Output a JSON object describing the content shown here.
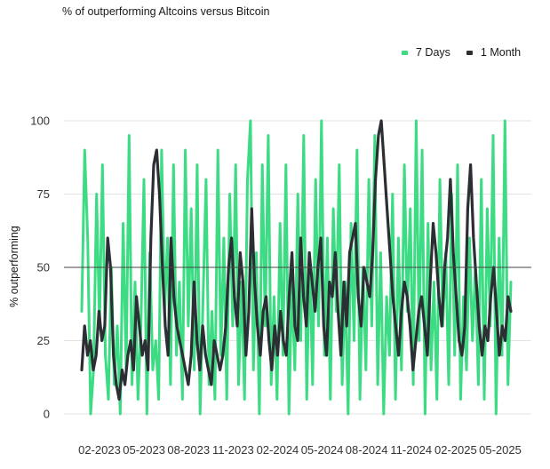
{
  "colors": {
    "series_7d": "#3ddc84",
    "series_1m": "#2b2f33",
    "grid": "#e3e3e3",
    "reference": "#444444"
  },
  "chart_data": {
    "type": "line",
    "title": "% of outperforming Altcoins versus Bitcoin",
    "ylabel": "% outperforming",
    "xlabel": "",
    "ylim": [
      0,
      100
    ],
    "yticks": [
      "0",
      "25",
      "50",
      "75",
      "100"
    ],
    "xticks": [
      "02-2023",
      "05-2023",
      "08-2023",
      "11-2023",
      "02-2024",
      "05-2024",
      "08-2024",
      "11-2024",
      "02-2025",
      "05-2025"
    ],
    "reference_line": 50,
    "grid": "horizontal",
    "legend": "top-right",
    "series": [
      {
        "name": "7 Days",
        "color": "#3ddc84",
        "values": [
          35,
          90,
          60,
          0,
          15,
          75,
          30,
          85,
          20,
          5,
          50,
          10,
          30,
          0,
          65,
          15,
          95,
          10,
          45,
          5,
          30,
          80,
          0,
          55,
          15,
          25,
          5,
          90,
          35,
          60,
          10,
          85,
          20,
          45,
          5,
          90,
          30,
          70,
          15,
          85,
          0,
          40,
          80,
          10,
          35,
          5,
          90,
          20,
          60,
          5,
          75,
          30,
          85,
          10,
          45,
          5,
          80,
          100,
          15,
          55,
          0,
          85,
          30,
          95,
          10,
          40,
          5,
          65,
          20,
          85,
          0,
          45,
          15,
          75,
          25,
          95,
          5,
          55,
          10,
          80,
          30,
          100,
          20,
          60,
          5,
          70,
          35,
          85,
          10,
          45,
          0,
          65,
          25,
          90,
          5,
          50,
          15,
          80,
          30,
          95,
          10,
          55,
          0,
          40,
          20,
          75,
          5,
          60,
          15,
          85,
          35,
          70,
          10,
          100,
          25,
          90,
          0,
          65,
          15,
          45,
          5,
          80,
          30,
          55,
          10,
          75,
          20,
          85,
          5,
          40,
          15,
          60,
          25,
          50,
          10,
          80,
          5,
          70,
          30,
          95,
          0,
          60,
          20,
          100,
          10,
          45
        ]
      },
      {
        "name": "1 Month",
        "color": "#2b2f33",
        "values": [
          15,
          30,
          20,
          25,
          15,
          20,
          35,
          25,
          30,
          60,
          50,
          20,
          10,
          5,
          15,
          10,
          20,
          25,
          15,
          40,
          30,
          20,
          25,
          15,
          60,
          85,
          90,
          75,
          50,
          30,
          20,
          60,
          40,
          30,
          25,
          20,
          15,
          10,
          20,
          45,
          25,
          15,
          30,
          20,
          15,
          10,
          25,
          20,
          15,
          20,
          30,
          50,
          60,
          40,
          30,
          55,
          45,
          20,
          35,
          70,
          45,
          30,
          20,
          35,
          40,
          25,
          15,
          30,
          20,
          35,
          25,
          20,
          40,
          55,
          30,
          25,
          60,
          40,
          30,
          55,
          45,
          35,
          50,
          60,
          30,
          20,
          45,
          40,
          55,
          35,
          20,
          45,
          30,
          55,
          60,
          65,
          40,
          30,
          50,
          45,
          40,
          55,
          80,
          95,
          100,
          85,
          70,
          55,
          40,
          30,
          20,
          35,
          45,
          40,
          30,
          15,
          25,
          35,
          40,
          30,
          20,
          45,
          65,
          55,
          40,
          30,
          50,
          60,
          80,
          55,
          40,
          25,
          20,
          30,
          70,
          85,
          60,
          45,
          30,
          20,
          30,
          25,
          40,
          50,
          35,
          20,
          30,
          25,
          40,
          35
        ]
      }
    ]
  }
}
